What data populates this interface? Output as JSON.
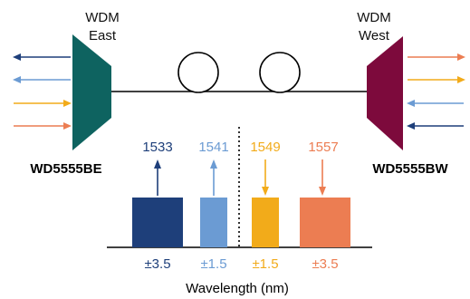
{
  "wdm_east": {
    "title_line1": "WDM",
    "title_line2": "East",
    "part_number": "WD5555BE",
    "color": "#0e6360"
  },
  "wdm_west": {
    "title_line1": "WDM",
    "title_line2": "West",
    "part_number": "WD5555BW",
    "color": "#7d0a3c"
  },
  "channels": [
    {
      "wavelength": "1533",
      "tolerance": "±3.5",
      "color": "#1e3f7a"
    },
    {
      "wavelength": "1541",
      "tolerance": "±1.5",
      "color": "#6b9bd3"
    },
    {
      "wavelength": "1549",
      "tolerance": "±1.5",
      "color": "#f2ab1a"
    },
    {
      "wavelength": "1557",
      "tolerance": "±3.5",
      "color": "#ec7d52"
    }
  ],
  "axis_label": "Wavelength (nm)"
}
